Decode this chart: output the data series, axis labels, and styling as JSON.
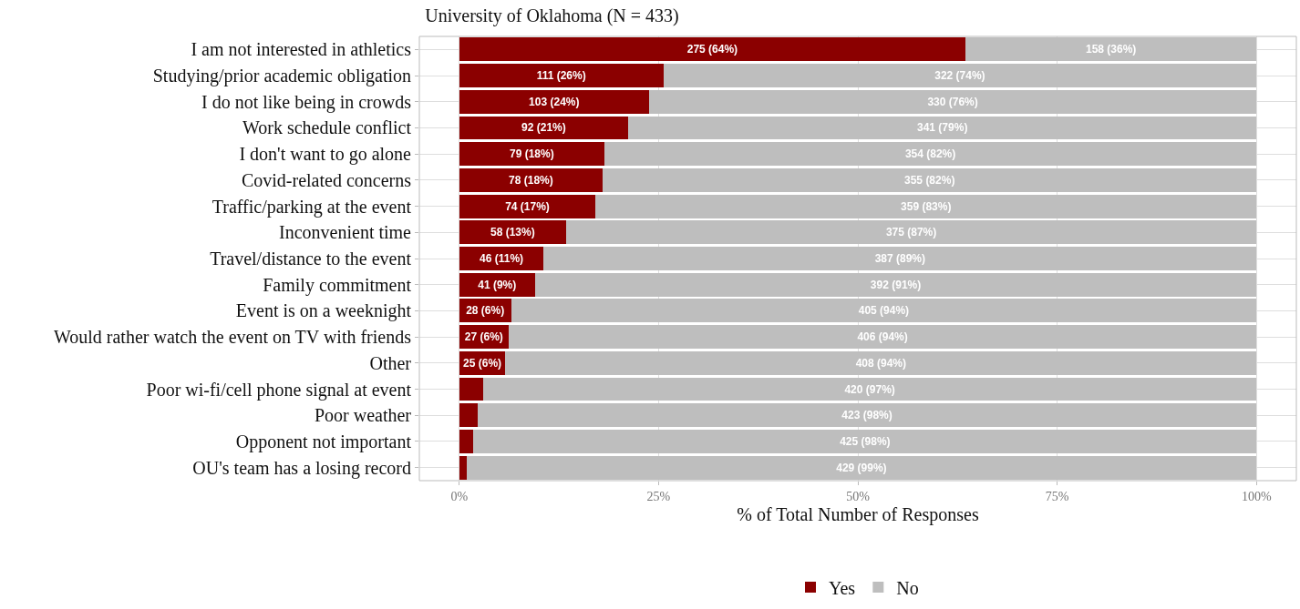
{
  "chart_data": {
    "type": "bar",
    "orientation": "horizontal",
    "stacked": true,
    "title": "University of Oklahoma (N = 433)",
    "xlabel": "% of Total Number of Responses",
    "categories": [
      "I am not interested in athletics",
      "Studying/prior academic obligation",
      "I do not like being in crowds",
      "Work schedule conflict",
      "I don't want to go alone",
      "Covid-related concerns",
      "Traffic/parking at the event",
      "Inconvenient time",
      "Travel/distance to the event",
      "Family commitment",
      "Event is on a weeknight",
      "Would rather watch the event on TV with friends",
      "Other",
      "Poor wi-fi/cell phone signal at event",
      "Poor weather",
      "Opponent not important",
      "OU's team has a losing record"
    ],
    "series": [
      {
        "name": "Yes",
        "color": "#8b0000",
        "values": [
          63.5,
          25.6,
          23.8,
          21.2,
          18.2,
          18.0,
          17.1,
          13.4,
          10.6,
          9.5,
          6.5,
          6.2,
          5.8,
          3.0,
          2.3,
          1.8,
          0.9
        ],
        "value_labels": [
          "275 (64%)",
          "111 (26%)",
          "103 (24%)",
          "92 (21%)",
          "79 (18%)",
          "78 (18%)",
          "74 (17%)",
          "58 (13%)",
          "46 (11%)",
          "41 (9%)",
          "28 (6%)",
          "27 (6%)",
          "25 (6%)",
          null,
          null,
          null,
          null
        ]
      },
      {
        "name": "No",
        "color": "#bebebe",
        "values": [
          36.5,
          74.4,
          76.2,
          78.8,
          81.8,
          82.0,
          82.9,
          86.6,
          89.4,
          90.5,
          93.5,
          93.8,
          94.2,
          97.0,
          97.7,
          98.2,
          99.1
        ],
        "value_labels": [
          "158 (36%)",
          "322 (74%)",
          "330 (76%)",
          "341 (79%)",
          "354 (82%)",
          "355 (82%)",
          "359 (83%)",
          "375 (87%)",
          "387 (89%)",
          "392 (91%)",
          "405 (94%)",
          "406 (94%)",
          "408 (94%)",
          "420 (97%)",
          "423 (98%)",
          "425 (98%)",
          "429 (99%)"
        ]
      }
    ],
    "xlim": [
      -5,
      105
    ],
    "xticks": [
      {
        "value": 0,
        "label": "0%"
      },
      {
        "value": 25,
        "label": "25%"
      },
      {
        "value": 50,
        "label": "50%"
      },
      {
        "value": 75,
        "label": "75%"
      },
      {
        "value": 100,
        "label": "100%"
      }
    ],
    "grid": true,
    "legend": "bottom"
  }
}
